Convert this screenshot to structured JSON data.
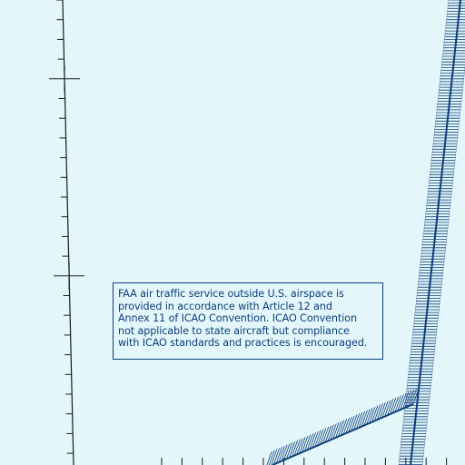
{
  "colors": {
    "background": "#e3f7fa",
    "boundary": "#0c3e7a",
    "graticule": "#1a1a1a"
  },
  "map_features": {
    "graticule": "latitude/longitude tick scale",
    "boundary_1": "airspace boundary with hatched band",
    "boundary_2": "airspace boundary with hatched band"
  },
  "notice": {
    "lines": [
      "FAA air traffic service outside U.S. airspace is",
      "provided in accordance with Article 12 and",
      "Annex 11 of ICAO Convention.  ICAO Convention",
      "not applicable to state aircraft but compliance",
      "with ICAO standards and practices is encouraged."
    ]
  }
}
